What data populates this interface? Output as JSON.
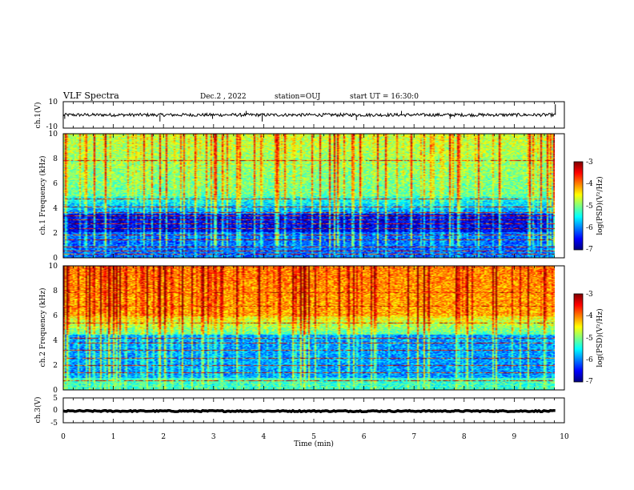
{
  "header": {
    "title": "VLF Spectra",
    "date": "Dec.2 , 2022",
    "station": "station=OUJ",
    "start": "start UT = 16:30:0"
  },
  "chart_data": [
    {
      "type": "line",
      "panel": "ch1-waveform",
      "ylabel": "ch.1(V)",
      "ylim": [
        -10,
        10
      ],
      "yticks": [
        "10",
        "-10"
      ],
      "xlim": [
        0,
        10
      ],
      "baseline": 0,
      "noise_amplitude": 1.2,
      "spikes": [
        {
          "x": 0.03,
          "y": -3
        },
        {
          "x": 1.93,
          "y": -5
        },
        {
          "x": 2.98,
          "y": -3
        },
        {
          "x": 3.65,
          "y": 3
        },
        {
          "x": 3.97,
          "y": -5
        },
        {
          "x": 5.85,
          "y": -4
        },
        {
          "x": 6.75,
          "y": 3
        },
        {
          "x": 7.72,
          "y": -3
        },
        {
          "x": 9.82,
          "y": 8
        }
      ]
    },
    {
      "type": "heatmap",
      "panel": "ch1-spectrogram",
      "ylabel": "ch.1 Frequency (kHz)",
      "ylim": [
        0,
        10
      ],
      "yticks": [
        "0",
        "2",
        "4",
        "6",
        "8",
        "10"
      ],
      "xlim": [
        0,
        9.82
      ],
      "colorbar": {
        "label": "log(PSD)(V²/Hz)",
        "range": [
          -7,
          -3
        ],
        "ticks": [
          "-3",
          "-4",
          "-5",
          "-6",
          "-7"
        ]
      },
      "low_band_kHz": [
        2.1,
        3.6
      ],
      "high_band_value": -5.1,
      "line_frequencies_kHz": [
        0.3,
        0.6,
        0.9,
        1.5,
        1.9,
        2.4,
        2.8,
        3.1,
        3.4,
        3.7,
        4.1,
        4.8,
        7.9
      ]
    },
    {
      "type": "heatmap",
      "panel": "ch2-spectrogram",
      "ylabel": "ch.2 Frequency (kHz)",
      "ylim": [
        0,
        10
      ],
      "yticks": [
        "0",
        "2",
        "4",
        "6",
        "8",
        "10"
      ],
      "xlim": [
        0,
        9.82
      ],
      "colorbar": {
        "label": "log(PSD)(V²/Hz)",
        "range": [
          -7,
          -3
        ],
        "ticks": [
          "-3",
          "-4",
          "-5",
          "-6",
          "-7"
        ]
      },
      "low_band_kHz": [
        0.5,
        4.5
      ],
      "high_band_value": -4.2,
      "line_frequencies_kHz": [
        0.8,
        1.4,
        2.0,
        2.6,
        3.2,
        3.8,
        4.2,
        5.4,
        6.8,
        7.9
      ]
    },
    {
      "type": "line",
      "panel": "ch3-waveform",
      "ylabel": "ch.3(V)",
      "ylim": [
        -5,
        5
      ],
      "yticks": [
        "5",
        "0",
        "-5"
      ],
      "xlim": [
        0,
        10
      ],
      "baseline": -0.3,
      "noise_amplitude": 0.25,
      "spikes": []
    }
  ],
  "x_axis": {
    "label": "Time (min)",
    "ticks": [
      "0",
      "1",
      "2",
      "3",
      "4",
      "5",
      "6",
      "7",
      "8",
      "9",
      "10"
    ]
  },
  "colors": {
    "jet": [
      "#00007f",
      "#0000ff",
      "#007fff",
      "#00ffff",
      "#7fff7f",
      "#ffff00",
      "#ff7f00",
      "#ff0000",
      "#7f0000"
    ]
  }
}
